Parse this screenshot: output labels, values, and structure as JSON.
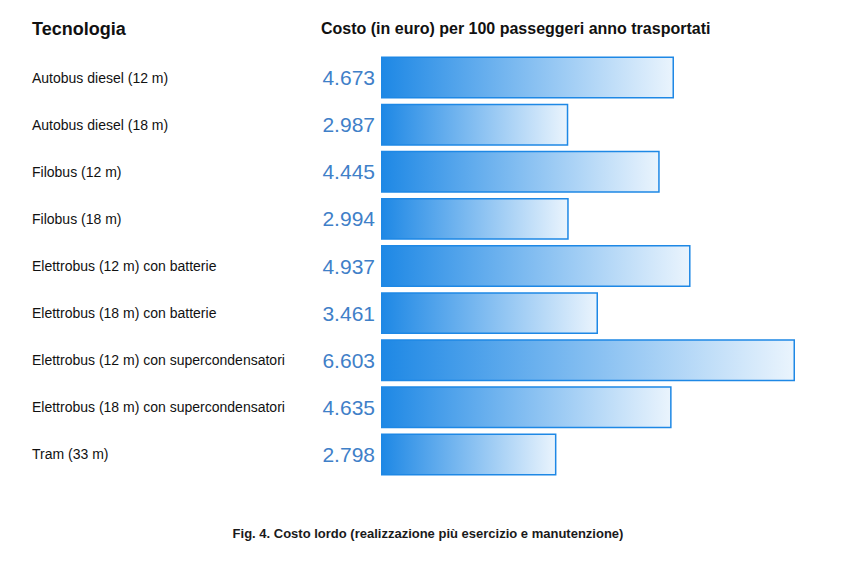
{
  "chart_data": {
    "type": "bar",
    "orientation": "horizontal",
    "title": "Fig. 4. Costo lordo (realizzazione più esercizio e manutenzione)",
    "y_label": "Tecnologia",
    "x_label": "Costo (in euro) per 100 passeggeri anno trasportati",
    "categories": [
      "Autobus diesel (12 m)",
      "Autobus diesel (18 m)",
      "Filobus (12 m)",
      "Filobus (18 m)",
      "Elettrobus (12 m) con batterie",
      "Elettrobus (18 m) con batterie",
      "Elettrobus (12 m) con supercondensatori",
      "Elettrobus (18 m) con supercondensatori",
      "Tram (33 m)"
    ],
    "values": [
      4673,
      2987,
      4445,
      2994,
      4937,
      3461,
      6603,
      4635,
      2798
    ],
    "value_labels": [
      "4.673",
      "2.987",
      "4.445",
      "2.994",
      "4.937",
      "3.461",
      "6.603",
      "4.635",
      "2.798"
    ],
    "color": "#1e88e5",
    "xlim": [
      0,
      6603
    ],
    "data_labels": true,
    "tick_labels": "y",
    "grid": false
  }
}
